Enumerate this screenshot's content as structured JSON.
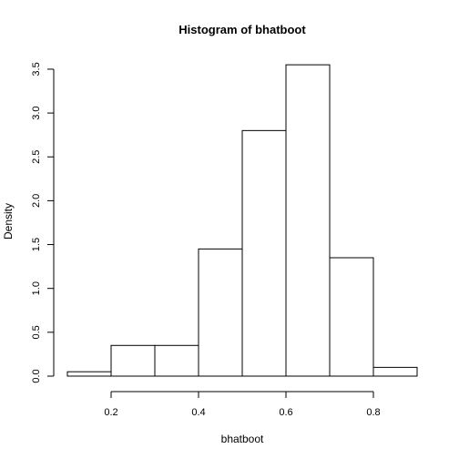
{
  "chart_data": {
    "type": "bar",
    "title": "Histogram of bhatboot",
    "xlabel": "bhatboot",
    "ylabel": "Density",
    "bins": [
      {
        "start": 0.1,
        "end": 0.2,
        "value": 0.05
      },
      {
        "start": 0.2,
        "end": 0.3,
        "value": 0.35
      },
      {
        "start": 0.3,
        "end": 0.4,
        "value": 0.35
      },
      {
        "start": 0.4,
        "end": 0.5,
        "value": 1.45
      },
      {
        "start": 0.5,
        "end": 0.6,
        "value": 2.8
      },
      {
        "start": 0.6,
        "end": 0.7,
        "value": 3.55
      },
      {
        "start": 0.7,
        "end": 0.8,
        "value": 1.35
      },
      {
        "start": 0.8,
        "end": 0.9,
        "value": 0.1
      }
    ],
    "xlim": [
      0.1,
      0.9
    ],
    "ylim": [
      0,
      3.6
    ],
    "x_ticks": [
      0.2,
      0.4,
      0.6,
      0.8
    ],
    "x_tick_labels": [
      "0.2",
      "0.4",
      "0.6",
      "0.8"
    ],
    "y_ticks": [
      0.0,
      0.5,
      1.0,
      1.5,
      2.0,
      2.5,
      3.0,
      3.5
    ],
    "y_tick_labels": [
      "0.0",
      "0.5",
      "1.0",
      "1.5",
      "2.0",
      "2.5",
      "3.0",
      "3.5"
    ],
    "grid": false,
    "bar_fill": "#ffffff",
    "bar_stroke": "#000000"
  }
}
